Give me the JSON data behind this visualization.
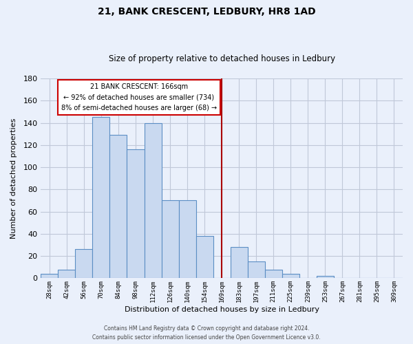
{
  "title": "21, BANK CRESCENT, LEDBURY, HR8 1AD",
  "subtitle": "Size of property relative to detached houses in Ledbury",
  "xlabel": "Distribution of detached houses by size in Ledbury",
  "ylabel": "Number of detached properties",
  "footnote1": "Contains HM Land Registry data © Crown copyright and database right 2024.",
  "footnote2": "Contains public sector information licensed under the Open Government Licence v3.0.",
  "bin_labels": [
    "28sqm",
    "42sqm",
    "56sqm",
    "70sqm",
    "84sqm",
    "98sqm",
    "112sqm",
    "126sqm",
    "140sqm",
    "154sqm",
    "169sqm",
    "183sqm",
    "197sqm",
    "211sqm",
    "225sqm",
    "239sqm",
    "253sqm",
    "267sqm",
    "281sqm",
    "295sqm",
    "309sqm"
  ],
  "bar_values": [
    4,
    8,
    26,
    145,
    129,
    116,
    140,
    70,
    70,
    38,
    0,
    28,
    15,
    8,
    4,
    0,
    2,
    0,
    0,
    0,
    0
  ],
  "bar_color": "#c9d9f0",
  "bar_edge_color": "#5b8ec4",
  "grid_color": "#c0c8d8",
  "background_color": "#eaf0fb",
  "property_line_x": 10.0,
  "property_line_color": "#aa0000",
  "annotation_title": "21 BANK CRESCENT: 166sqm",
  "annotation_line1": "← 92% of detached houses are smaller (734)",
  "annotation_line2": "8% of semi-detached houses are larger (68) →",
  "annotation_box_color": "#ffffff",
  "annotation_box_edge": "#cc0000",
  "ylim": [
    0,
    180
  ],
  "yticks": [
    0,
    20,
    40,
    60,
    80,
    100,
    120,
    140,
    160,
    180
  ]
}
